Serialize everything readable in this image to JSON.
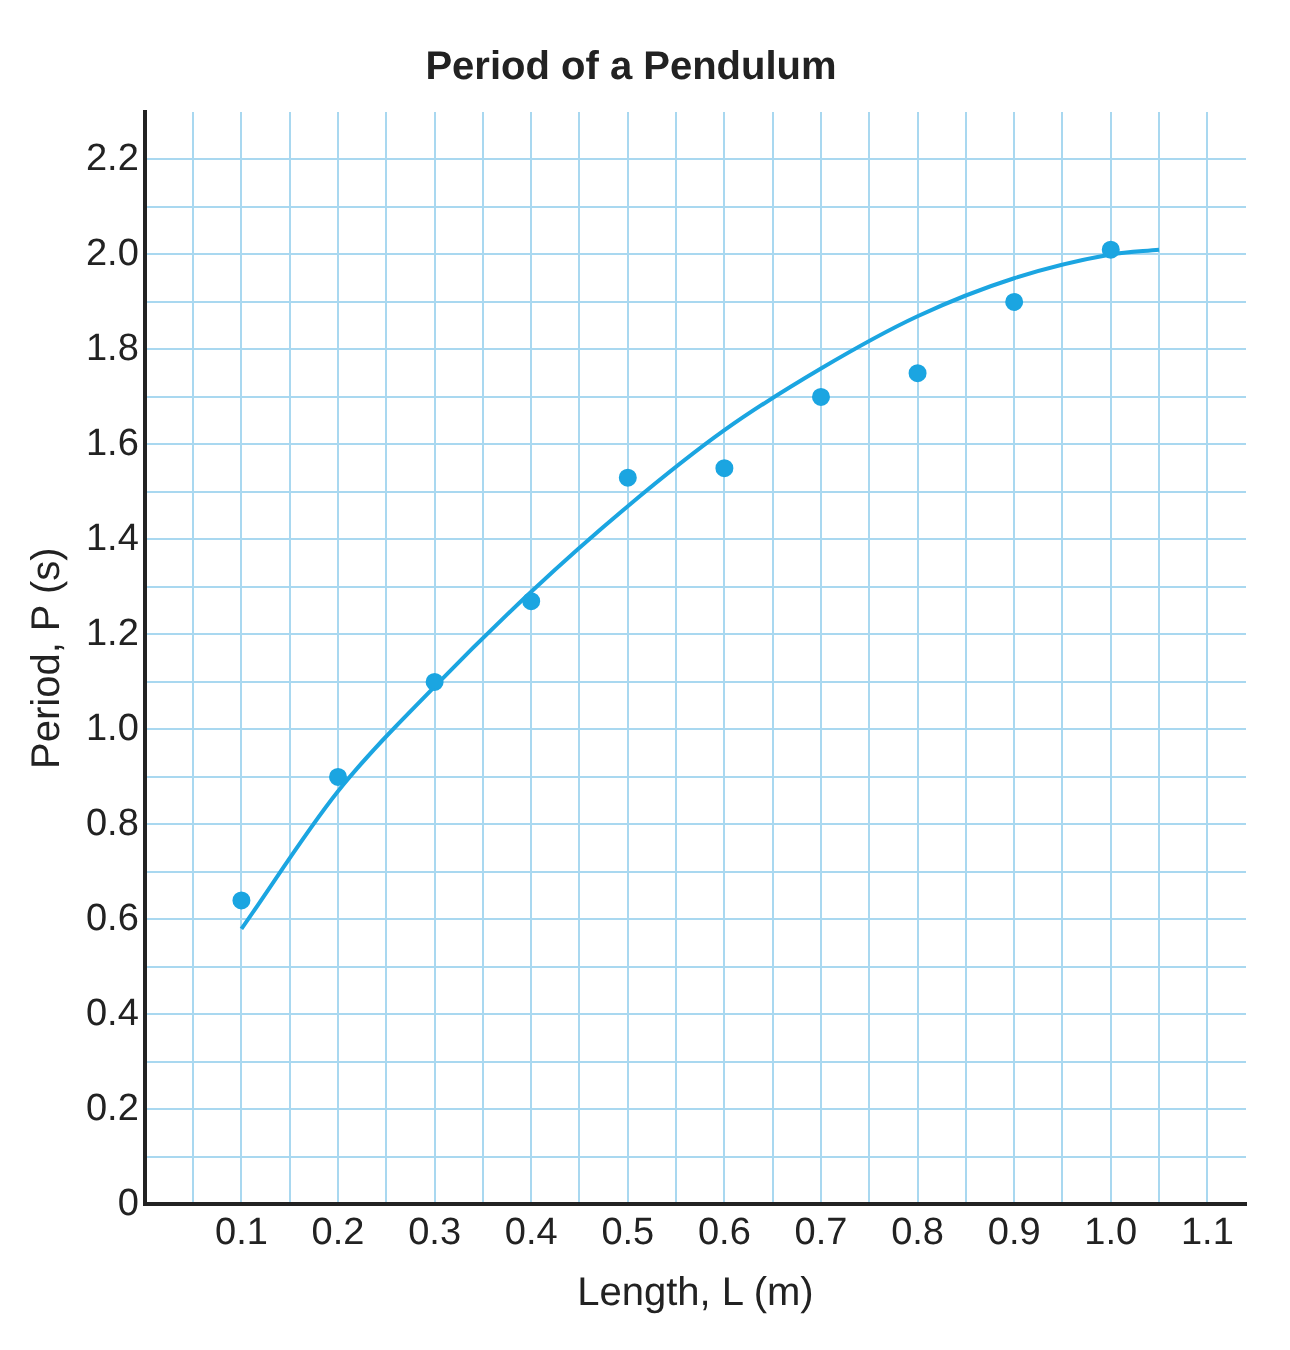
{
  "chart_data": {
    "type": "scatter",
    "title": "Period of a Pendulum",
    "xlabel": "Length, L (m)",
    "ylabel": "Period, P (s)",
    "xlim": [
      0,
      1.14
    ],
    "ylim": [
      0,
      2.3
    ],
    "xticks": [
      {
        "value": 0.05,
        "label": null
      },
      0.1,
      {
        "value": 0.15,
        "label": null
      },
      0.2,
      {
        "value": 0.25,
        "label": null
      },
      0.3,
      {
        "value": 0.35,
        "label": null
      },
      0.4,
      {
        "value": 0.45,
        "label": null
      },
      0.5,
      {
        "value": 0.55,
        "label": null
      },
      0.6,
      {
        "value": 0.65,
        "label": null
      },
      0.7,
      {
        "value": 0.75,
        "label": null
      },
      0.8,
      {
        "value": 0.85,
        "label": null
      },
      0.9,
      {
        "value": 0.95,
        "label": null
      },
      {
        "value": 1,
        "label": "1.0"
      },
      {
        "value": 1.05,
        "label": null
      },
      1.1
    ],
    "yticks": [
      0,
      {
        "value": 0.1,
        "label": null
      },
      0.2,
      {
        "value": 0.3,
        "label": null
      },
      0.4,
      {
        "value": 0.5,
        "label": null
      },
      0.6,
      {
        "value": 0.7,
        "label": null
      },
      0.8,
      {
        "value": 0.9,
        "label": null
      },
      {
        "value": 1,
        "label": "1.0"
      },
      {
        "value": 1.1,
        "label": null
      },
      1.2,
      {
        "value": 1.3,
        "label": null
      },
      1.4,
      {
        "value": 1.5,
        "label": null
      },
      1.6,
      {
        "value": 1.7,
        "label": null
      },
      1.8,
      {
        "value": 1.9,
        "label": null
      },
      {
        "value": 2,
        "label": "2.0"
      },
      {
        "value": 2.1,
        "label": null
      },
      2.2
    ],
    "grid": true,
    "legend": false,
    "series": [
      {
        "type": "scatter",
        "color": "#1ba5e1",
        "marker": "circle",
        "x": [
          0.1,
          0.2,
          0.3,
          0.4,
          0.5,
          0.6,
          0.7,
          0.8,
          0.9,
          1.0
        ],
        "values": [
          0.64,
          0.9,
          1.1,
          1.27,
          1.53,
          1.55,
          1.7,
          1.75,
          1.9,
          2.01
        ]
      },
      {
        "type": "line",
        "color": "#1ba5e1",
        "marker": "none",
        "line_style": "solid",
        "x": [
          0.1,
          0.2,
          0.3,
          0.4,
          0.5,
          0.6,
          0.7,
          0.8,
          0.9,
          1.0,
          1.05
        ],
        "values": [
          0.58,
          0.87,
          1.09,
          1.29,
          1.47,
          1.63,
          1.76,
          1.87,
          1.95,
          2.0,
          2.01
        ]
      }
    ]
  }
}
